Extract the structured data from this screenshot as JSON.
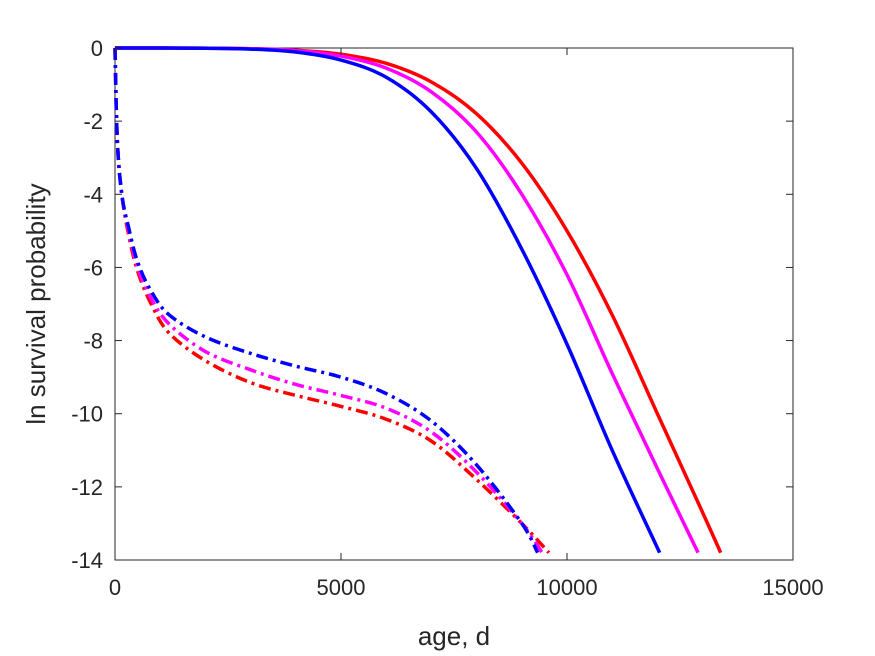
{
  "chart_data": {
    "type": "line",
    "title": "",
    "xlabel": "age, d",
    "ylabel": "ln survival probability",
    "xlim": [
      0,
      15000
    ],
    "ylim": [
      -14,
      0
    ],
    "xticks": [
      0,
      5000,
      10000,
      15000
    ],
    "yticks": [
      0,
      -2,
      -4,
      -6,
      -8,
      -10,
      -12,
      -14
    ],
    "grid": false,
    "legend": "none",
    "series": [
      {
        "style": "solid",
        "color": "#ff0000",
        "points": [
          [
            0,
            0
          ],
          [
            1000,
            -0.001
          ],
          [
            2000,
            -0.005
          ],
          [
            3000,
            -0.02
          ],
          [
            4000,
            -0.06
          ],
          [
            5000,
            -0.17
          ],
          [
            6000,
            -0.42
          ],
          [
            7000,
            -0.93
          ],
          [
            8000,
            -1.8
          ],
          [
            9000,
            -3.15
          ],
          [
            10000,
            -5.0
          ],
          [
            11000,
            -7.3
          ],
          [
            12000,
            -10.0
          ],
          [
            13000,
            -12.7
          ],
          [
            13400,
            -13.8
          ]
        ]
      },
      {
        "style": "solid",
        "color": "#ff00ff",
        "points": [
          [
            0,
            0
          ],
          [
            1000,
            -0.001
          ],
          [
            2000,
            -0.006
          ],
          [
            3000,
            -0.02
          ],
          [
            4000,
            -0.07
          ],
          [
            5000,
            -0.22
          ],
          [
            6000,
            -0.55
          ],
          [
            7000,
            -1.2
          ],
          [
            8000,
            -2.3
          ],
          [
            9000,
            -4.0
          ],
          [
            10000,
            -6.2
          ],
          [
            11000,
            -8.9
          ],
          [
            12000,
            -11.5
          ],
          [
            12900,
            -13.8
          ]
        ]
      },
      {
        "style": "solid",
        "color": "#0000ff",
        "points": [
          [
            0,
            0
          ],
          [
            1000,
            -0.001
          ],
          [
            2000,
            -0.008
          ],
          [
            3000,
            -0.03
          ],
          [
            4000,
            -0.11
          ],
          [
            5000,
            -0.33
          ],
          [
            6000,
            -0.8
          ],
          [
            7000,
            -1.75
          ],
          [
            8000,
            -3.3
          ],
          [
            9000,
            -5.5
          ],
          [
            10000,
            -8.1
          ],
          [
            11000,
            -11.0
          ],
          [
            12050,
            -13.8
          ]
        ]
      },
      {
        "style": "dashdot",
        "color": "#ff0000",
        "points": [
          [
            0,
            0
          ],
          [
            50,
            -2.5
          ],
          [
            150,
            -4.0
          ],
          [
            300,
            -5.1
          ],
          [
            500,
            -6.1
          ],
          [
            800,
            -7.0
          ],
          [
            1200,
            -7.8
          ],
          [
            2000,
            -8.55
          ],
          [
            3000,
            -9.15
          ],
          [
            4000,
            -9.5
          ],
          [
            5000,
            -9.8
          ],
          [
            6000,
            -10.15
          ],
          [
            7000,
            -10.75
          ],
          [
            8000,
            -11.8
          ],
          [
            9000,
            -13.0
          ],
          [
            9600,
            -13.8
          ]
        ]
      },
      {
        "style": "dashdot",
        "color": "#ff00ff",
        "points": [
          [
            0,
            0
          ],
          [
            50,
            -2.5
          ],
          [
            150,
            -4.0
          ],
          [
            300,
            -5.0
          ],
          [
            500,
            -6.0
          ],
          [
            800,
            -6.85
          ],
          [
            1200,
            -7.55
          ],
          [
            2000,
            -8.3
          ],
          [
            3000,
            -8.8
          ],
          [
            4000,
            -9.2
          ],
          [
            5000,
            -9.5
          ],
          [
            6000,
            -9.85
          ],
          [
            7000,
            -10.5
          ],
          [
            8000,
            -11.6
          ],
          [
            9000,
            -13.0
          ],
          [
            9450,
            -13.8
          ]
        ]
      },
      {
        "style": "dashdot",
        "color": "#0000ff",
        "points": [
          [
            0,
            0
          ],
          [
            50,
            -2.5
          ],
          [
            150,
            -4.0
          ],
          [
            300,
            -4.9
          ],
          [
            500,
            -5.85
          ],
          [
            800,
            -6.65
          ],
          [
            1200,
            -7.3
          ],
          [
            2000,
            -7.9
          ],
          [
            3000,
            -8.35
          ],
          [
            4000,
            -8.7
          ],
          [
            5000,
            -9.0
          ],
          [
            6000,
            -9.45
          ],
          [
            7000,
            -10.2
          ],
          [
            8000,
            -11.4
          ],
          [
            9000,
            -13.0
          ],
          [
            9350,
            -13.8
          ]
        ]
      }
    ]
  }
}
